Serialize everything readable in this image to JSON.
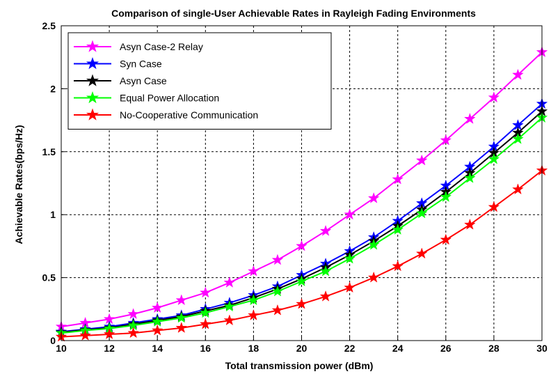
{
  "chart_data": {
    "type": "line",
    "title": "Comparison of single-User Achievable Rates in Rayleigh Fading Environments",
    "xlabel": "Total transmission power (dBm)",
    "ylabel": "Achievable Rates(bps/Hz)",
    "xlim": [
      10,
      30
    ],
    "ylim": [
      0,
      2.5
    ],
    "xticks": [
      10,
      12,
      14,
      16,
      18,
      20,
      22,
      24,
      26,
      28,
      30
    ],
    "yticks": [
      0,
      0.5,
      1,
      1.5,
      2,
      2.5
    ],
    "ytick_labels": [
      "0",
      "0.5",
      "1",
      "1.5",
      "2",
      "2.5"
    ],
    "grid": true,
    "legend_position": "top-left",
    "x": [
      10,
      11,
      12,
      13,
      14,
      15,
      16,
      17,
      18,
      19,
      20,
      21,
      22,
      23,
      24,
      25,
      26,
      27,
      28,
      29,
      30
    ],
    "series": [
      {
        "name": "Asyn Case-2 Relay",
        "color": "#ff00ff",
        "values": [
          0.11,
          0.14,
          0.17,
          0.21,
          0.26,
          0.32,
          0.38,
          0.46,
          0.55,
          0.64,
          0.75,
          0.87,
          1.0,
          1.13,
          1.28,
          1.43,
          1.59,
          1.76,
          1.93,
          2.11,
          2.29
        ]
      },
      {
        "name": "Syn Case",
        "color": "#0000ff",
        "values": [
          0.07,
          0.09,
          0.11,
          0.14,
          0.17,
          0.2,
          0.25,
          0.3,
          0.36,
          0.43,
          0.52,
          0.61,
          0.71,
          0.82,
          0.95,
          1.09,
          1.23,
          1.38,
          1.54,
          1.71,
          1.88
        ]
      },
      {
        "name": "Asyn Case",
        "color": "#000000",
        "values": [
          0.065,
          0.085,
          0.1,
          0.13,
          0.16,
          0.19,
          0.235,
          0.28,
          0.34,
          0.41,
          0.49,
          0.58,
          0.68,
          0.79,
          0.91,
          1.04,
          1.18,
          1.33,
          1.49,
          1.65,
          1.82
        ]
      },
      {
        "name": "Equal Power Allocation",
        "color": "#00ff00",
        "values": [
          0.06,
          0.08,
          0.095,
          0.12,
          0.15,
          0.18,
          0.22,
          0.27,
          0.32,
          0.39,
          0.47,
          0.55,
          0.65,
          0.76,
          0.88,
          1.01,
          1.14,
          1.29,
          1.44,
          1.6,
          1.77
        ]
      },
      {
        "name": "No-Cooperative Communication",
        "color": "#ff0000",
        "values": [
          0.03,
          0.04,
          0.05,
          0.06,
          0.08,
          0.1,
          0.13,
          0.16,
          0.2,
          0.24,
          0.29,
          0.35,
          0.42,
          0.5,
          0.59,
          0.69,
          0.8,
          0.92,
          1.06,
          1.2,
          1.35
        ]
      }
    ]
  }
}
